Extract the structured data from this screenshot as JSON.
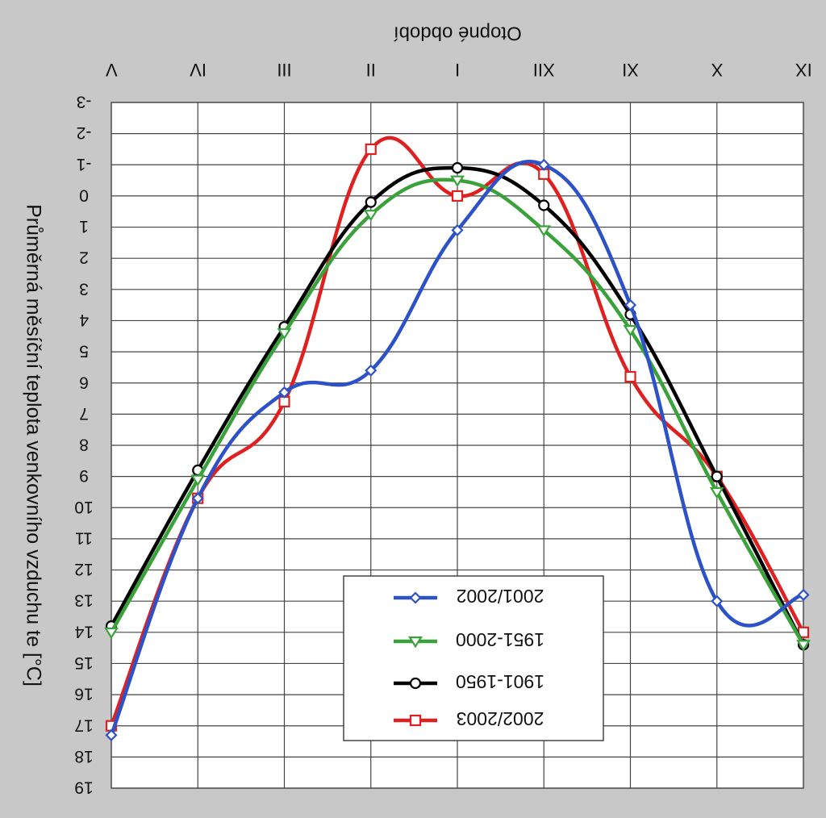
{
  "chart_data": {
    "type": "line",
    "title": "Otopné období",
    "ylabel": "Průměrná měsíční teplota venkovního vzduchu te [°C]",
    "categories": [
      "IX",
      "X",
      "XI",
      "XII",
      "I",
      "II",
      "III",
      "IV",
      "V"
    ],
    "y_ticks": [
      "-3",
      "-2",
      "-1",
      "0",
      "1",
      "2",
      "3",
      "4",
      "5",
      "6",
      "7",
      "8",
      "9",
      "10",
      "11",
      "12",
      "13",
      "14",
      "15",
      "16",
      "17",
      "18",
      "19"
    ],
    "ylim": [
      -3,
      19
    ],
    "y_inverted": true,
    "x_reversed": true,
    "grid": true,
    "legend_position": "bottom-center",
    "series": [
      {
        "name": "2001/2002",
        "color": "#2d52c8",
        "marker": "diamond",
        "values": [
          12.8,
          13.0,
          3.5,
          -1.0,
          1.1,
          5.6,
          6.3,
          9.7,
          17.3
        ]
      },
      {
        "name": "1951-2000",
        "color": "#3aa23a",
        "marker": "triangle",
        "values": [
          14.4,
          9.5,
          4.3,
          1.1,
          -0.5,
          0.6,
          4.4,
          9.1,
          14.0
        ]
      },
      {
        "name": "1901-1950",
        "color": "#000000",
        "marker": "circle",
        "values": [
          14.4,
          9.0,
          3.8,
          0.3,
          -0.9,
          0.2,
          4.2,
          8.8,
          13.8
        ]
      },
      {
        "name": "2002/2003",
        "color": "#e02020",
        "marker": "square",
        "values": [
          14.0,
          9.0,
          5.8,
          -0.7,
          0.0,
          -1.5,
          6.6,
          9.7,
          17.0
        ]
      }
    ]
  }
}
